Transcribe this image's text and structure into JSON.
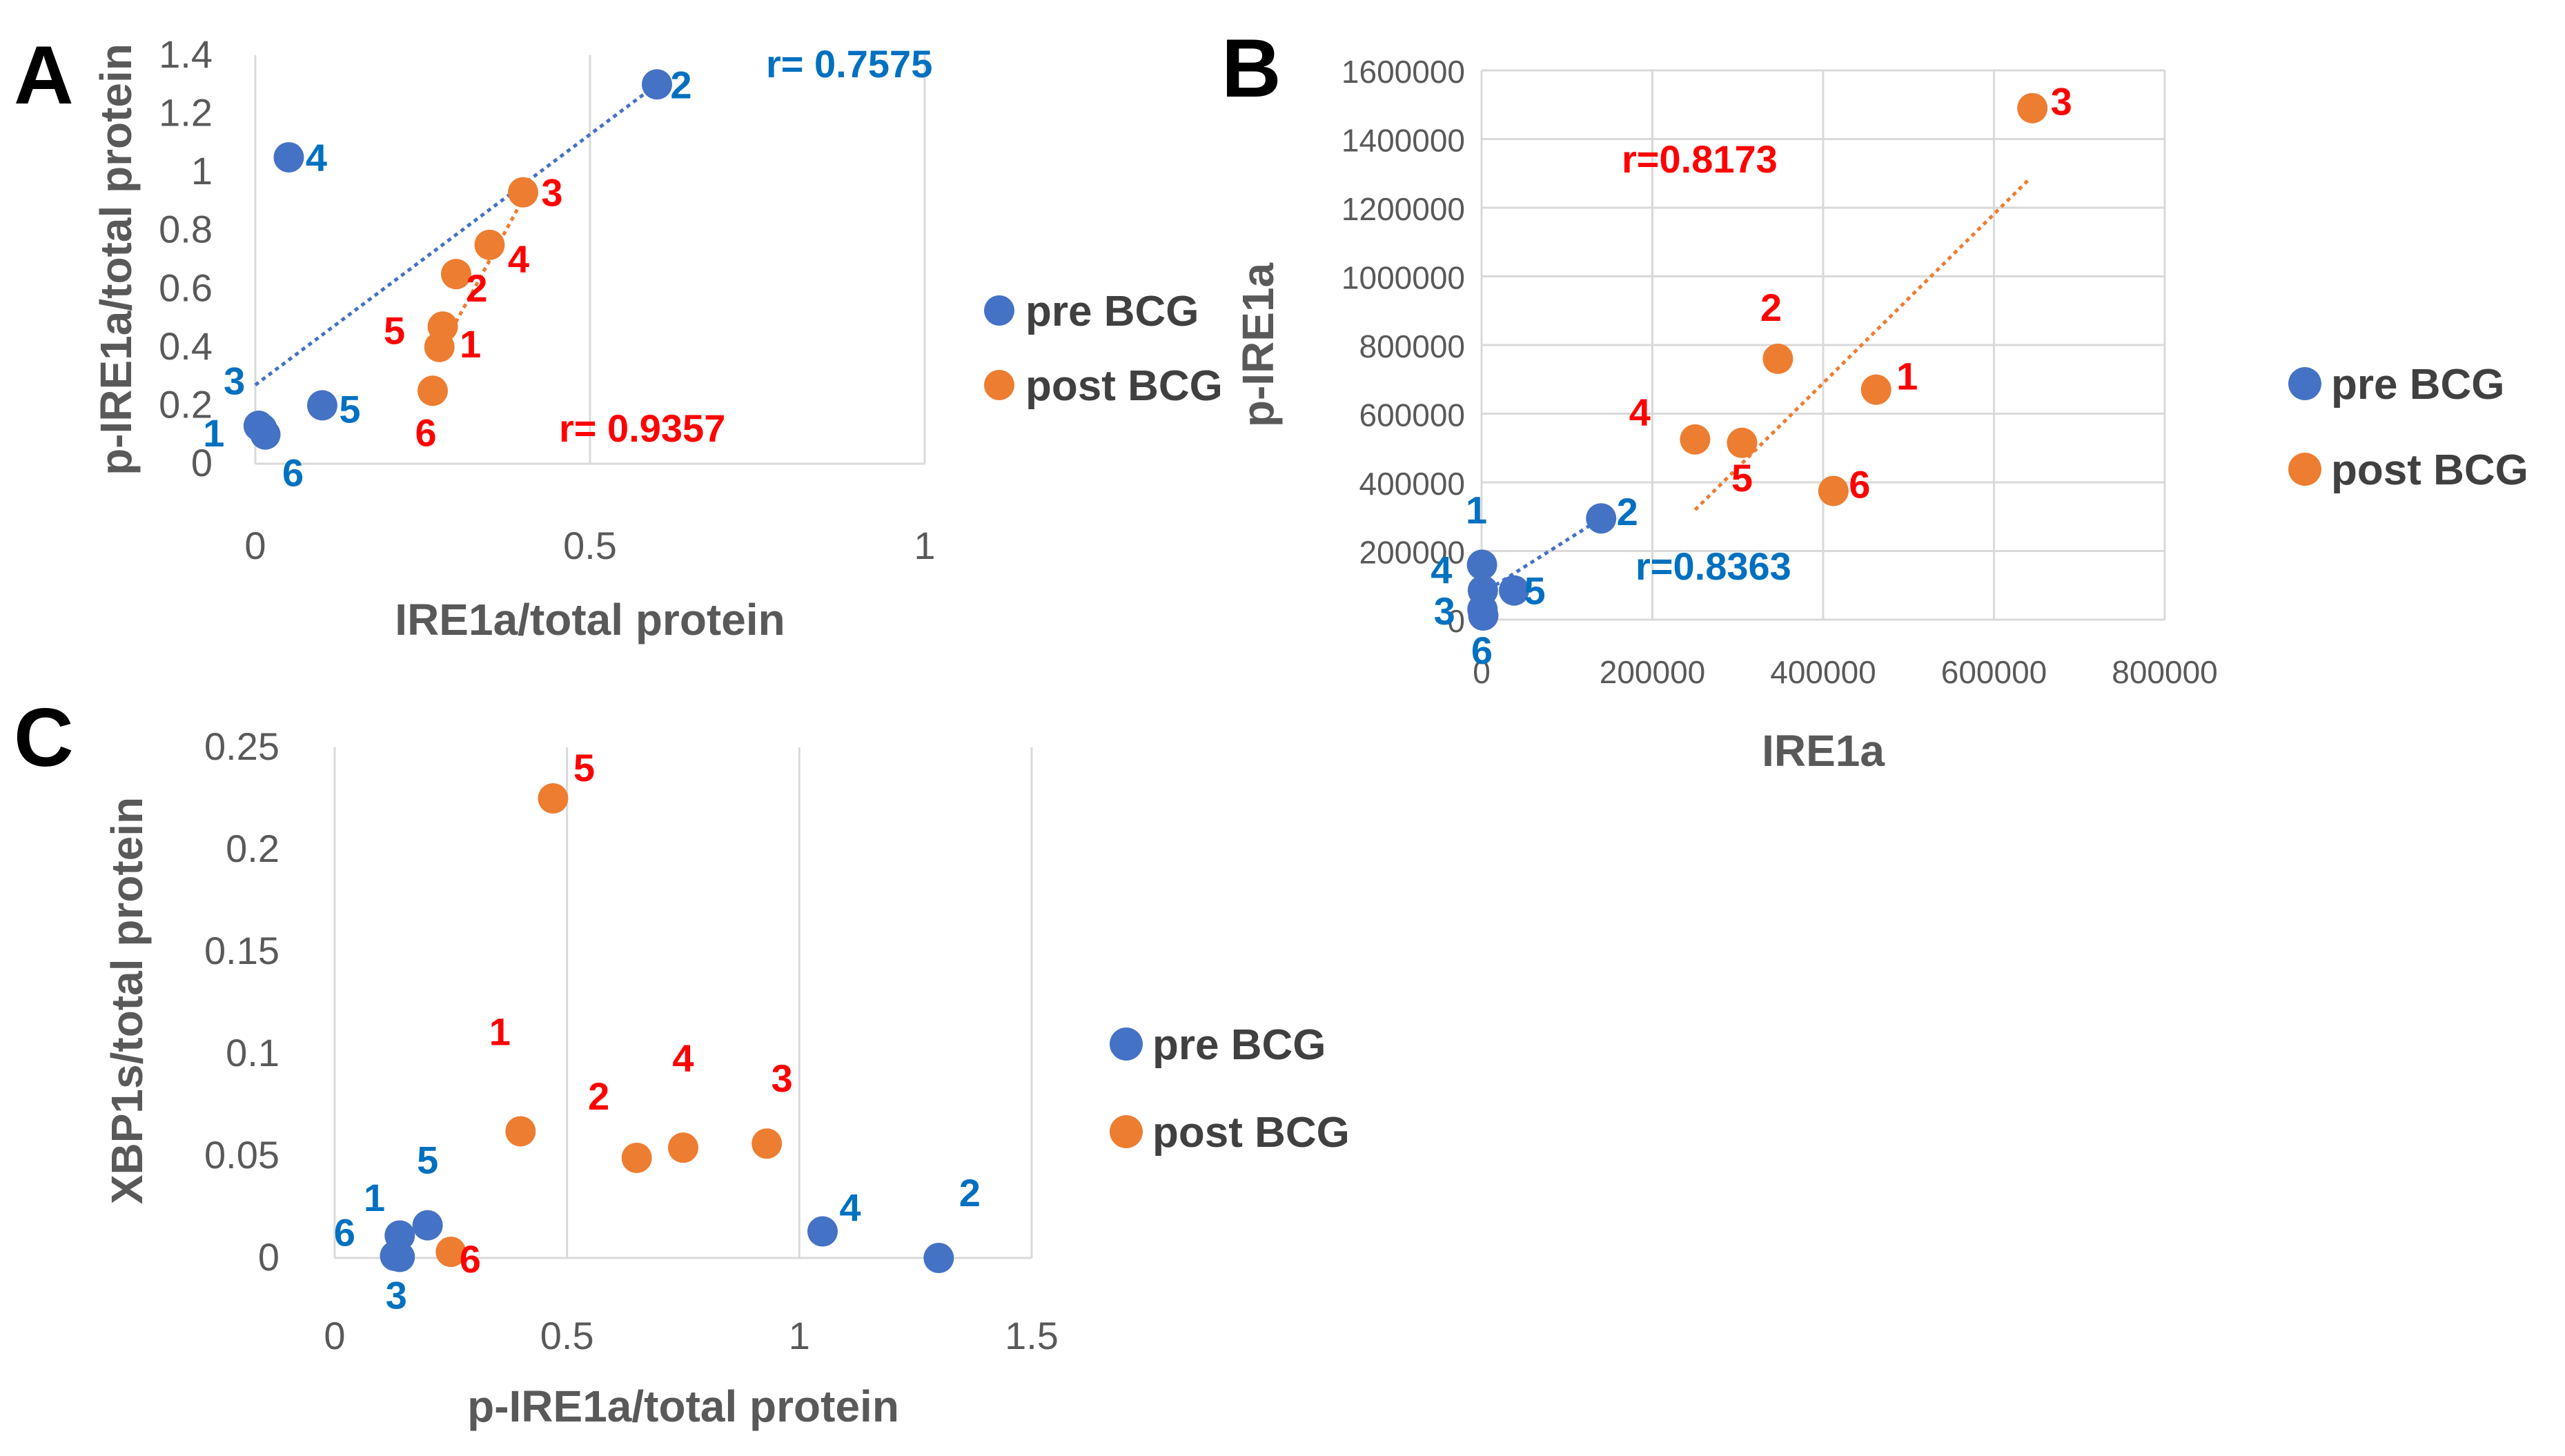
{
  "colors": {
    "pre": "#4472C4",
    "post": "#ED7D31",
    "label_pre": "#0070C0",
    "label_post": "#FF0000",
    "grid": "#D9D9D9",
    "axis_text": "#595959"
  },
  "legend": {
    "pre": "pre BCG",
    "post": "post BCG"
  },
  "chart_data": [
    {
      "panel": "A",
      "type": "scatter",
      "xlabel": "IRE1a/total protein",
      "ylabel": "p-IRE1a/total protein",
      "xlim": [
        0,
        1
      ],
      "ylim": [
        0,
        1.4
      ],
      "xticks": [
        0,
        0.5,
        1
      ],
      "xtick_labels": [
        "0",
        "0.5",
        "1"
      ],
      "yticks": [
        0,
        0.2,
        0.4,
        0.6,
        0.8,
        1.0,
        1.2,
        1.4
      ],
      "ytick_labels": [
        "0",
        "0.2",
        "0.4",
        "0.6",
        "0.8",
        "1",
        "1.2",
        "1.4"
      ],
      "grid": "vertical",
      "legend_position": "right",
      "series": [
        {
          "name": "pre BCG",
          "points": [
            {
              "label": "1",
              "x": 0.005,
              "y": 0.13
            },
            {
              "label": "2",
              "x": 0.6,
              "y": 1.3
            },
            {
              "label": "3",
              "x": 0.01,
              "y": 0.12
            },
            {
              "label": "4",
              "x": 0.05,
              "y": 1.05
            },
            {
              "label": "5",
              "x": 0.1,
              "y": 0.2
            },
            {
              "label": "6",
              "x": 0.015,
              "y": 0.1
            }
          ],
          "trend": {
            "x": [
              0,
              0.6
            ],
            "y": [
              0.27,
              1.3
            ]
          },
          "r_label": "r= 0.7575"
        },
        {
          "name": "post BCG",
          "points": [
            {
              "label": "1",
              "x": 0.275,
              "y": 0.4
            },
            {
              "label": "2",
              "x": 0.3,
              "y": 0.65
            },
            {
              "label": "3",
              "x": 0.4,
              "y": 0.93
            },
            {
              "label": "4",
              "x": 0.35,
              "y": 0.75
            },
            {
              "label": "5",
              "x": 0.28,
              "y": 0.47
            },
            {
              "label": "6",
              "x": 0.265,
              "y": 0.25
            }
          ],
          "trend": {
            "x": [
              0.27,
              0.41
            ],
            "y": [
              0.36,
              0.95
            ]
          },
          "r_label": "r= 0.9357"
        }
      ]
    },
    {
      "panel": "B",
      "type": "scatter",
      "xlabel": "IRE1a",
      "ylabel": "p-IRE1a",
      "xlim": [
        0,
        800000
      ],
      "ylim": [
        0,
        1600000
      ],
      "xticks": [
        0,
        200000,
        400000,
        600000,
        800000
      ],
      "xtick_labels": [
        "0",
        "200000",
        "400000",
        "600000",
        "800000"
      ],
      "yticks": [
        0,
        200000,
        400000,
        600000,
        800000,
        1000000,
        1200000,
        1400000,
        1600000
      ],
      "ytick_labels": [
        "0",
        "200000",
        "400000",
        "600000",
        "800000",
        "1000000",
        "1200000",
        "1400000",
        "1600000"
      ],
      "grid": "both",
      "legend_position": "right",
      "series": [
        {
          "name": "pre BCG",
          "points": [
            {
              "label": "1",
              "x": 500,
              "y": 160000
            },
            {
              "label": "2",
              "x": 140000,
              "y": 295000
            },
            {
              "label": "3",
              "x": 1000,
              "y": 30000
            },
            {
              "label": "4",
              "x": 1500,
              "y": 85000
            },
            {
              "label": "5",
              "x": 38000,
              "y": 85000
            },
            {
              "label": "6",
              "x": 2000,
              "y": 12000
            }
          ],
          "trend": {
            "x": [
              0,
              140000
            ],
            "y": [
              75000,
              295000
            ]
          },
          "r_label": "r=0.8363"
        },
        {
          "name": "post BCG",
          "points": [
            {
              "label": "1",
              "x": 462000,
              "y": 670000
            },
            {
              "label": "2",
              "x": 347000,
              "y": 760000
            },
            {
              "label": "3",
              "x": 645000,
              "y": 1490000
            },
            {
              "label": "4",
              "x": 250000,
              "y": 525000
            },
            {
              "label": "5",
              "x": 305000,
              "y": 515000
            },
            {
              "label": "6",
              "x": 412000,
              "y": 375000
            }
          ],
          "trend": {
            "x": [
              250000,
              640000
            ],
            "y": [
              320000,
              1280000
            ]
          },
          "r_label": "r=0.8173"
        }
      ]
    },
    {
      "panel": "C",
      "type": "scatter",
      "xlabel": "p-IRE1a/total protein",
      "ylabel": "XBP1s/total protein",
      "xlim": [
        0,
        1.5
      ],
      "ylim": [
        0,
        0.25
      ],
      "xticks": [
        0,
        0.5,
        1,
        1.5
      ],
      "xtick_labels": [
        "0",
        "0.5",
        "1",
        "1.5"
      ],
      "yticks": [
        0,
        0.05,
        0.1,
        0.15,
        0.2,
        0.25
      ],
      "ytick_labels": [
        "0",
        "0.05",
        "0.1",
        "0.15",
        "0.2",
        "0.25"
      ],
      "grid": "vertical",
      "legend_position": "right",
      "series": [
        {
          "name": "pre BCG",
          "points": [
            {
              "label": "1",
              "x": 0.13,
              "y": 0.001
            },
            {
              "label": "2",
              "x": 1.3,
              "y": 0.0
            },
            {
              "label": "3",
              "x": 0.14,
              "y": 0.0005
            },
            {
              "label": "4",
              "x": 1.05,
              "y": 0.013
            },
            {
              "label": "5",
              "x": 0.2,
              "y": 0.016
            },
            {
              "label": "6",
              "x": 0.14,
              "y": 0.011
            }
          ]
        },
        {
          "name": "post BCG",
          "points": [
            {
              "label": "1",
              "x": 0.4,
              "y": 0.062
            },
            {
              "label": "2",
              "x": 0.65,
              "y": 0.049
            },
            {
              "label": "3",
              "x": 0.93,
              "y": 0.056
            },
            {
              "label": "4",
              "x": 0.75,
              "y": 0.054
            },
            {
              "label": "5",
              "x": 0.47,
              "y": 0.225
            },
            {
              "label": "6",
              "x": 0.25,
              "y": 0.003
            }
          ]
        }
      ]
    }
  ]
}
